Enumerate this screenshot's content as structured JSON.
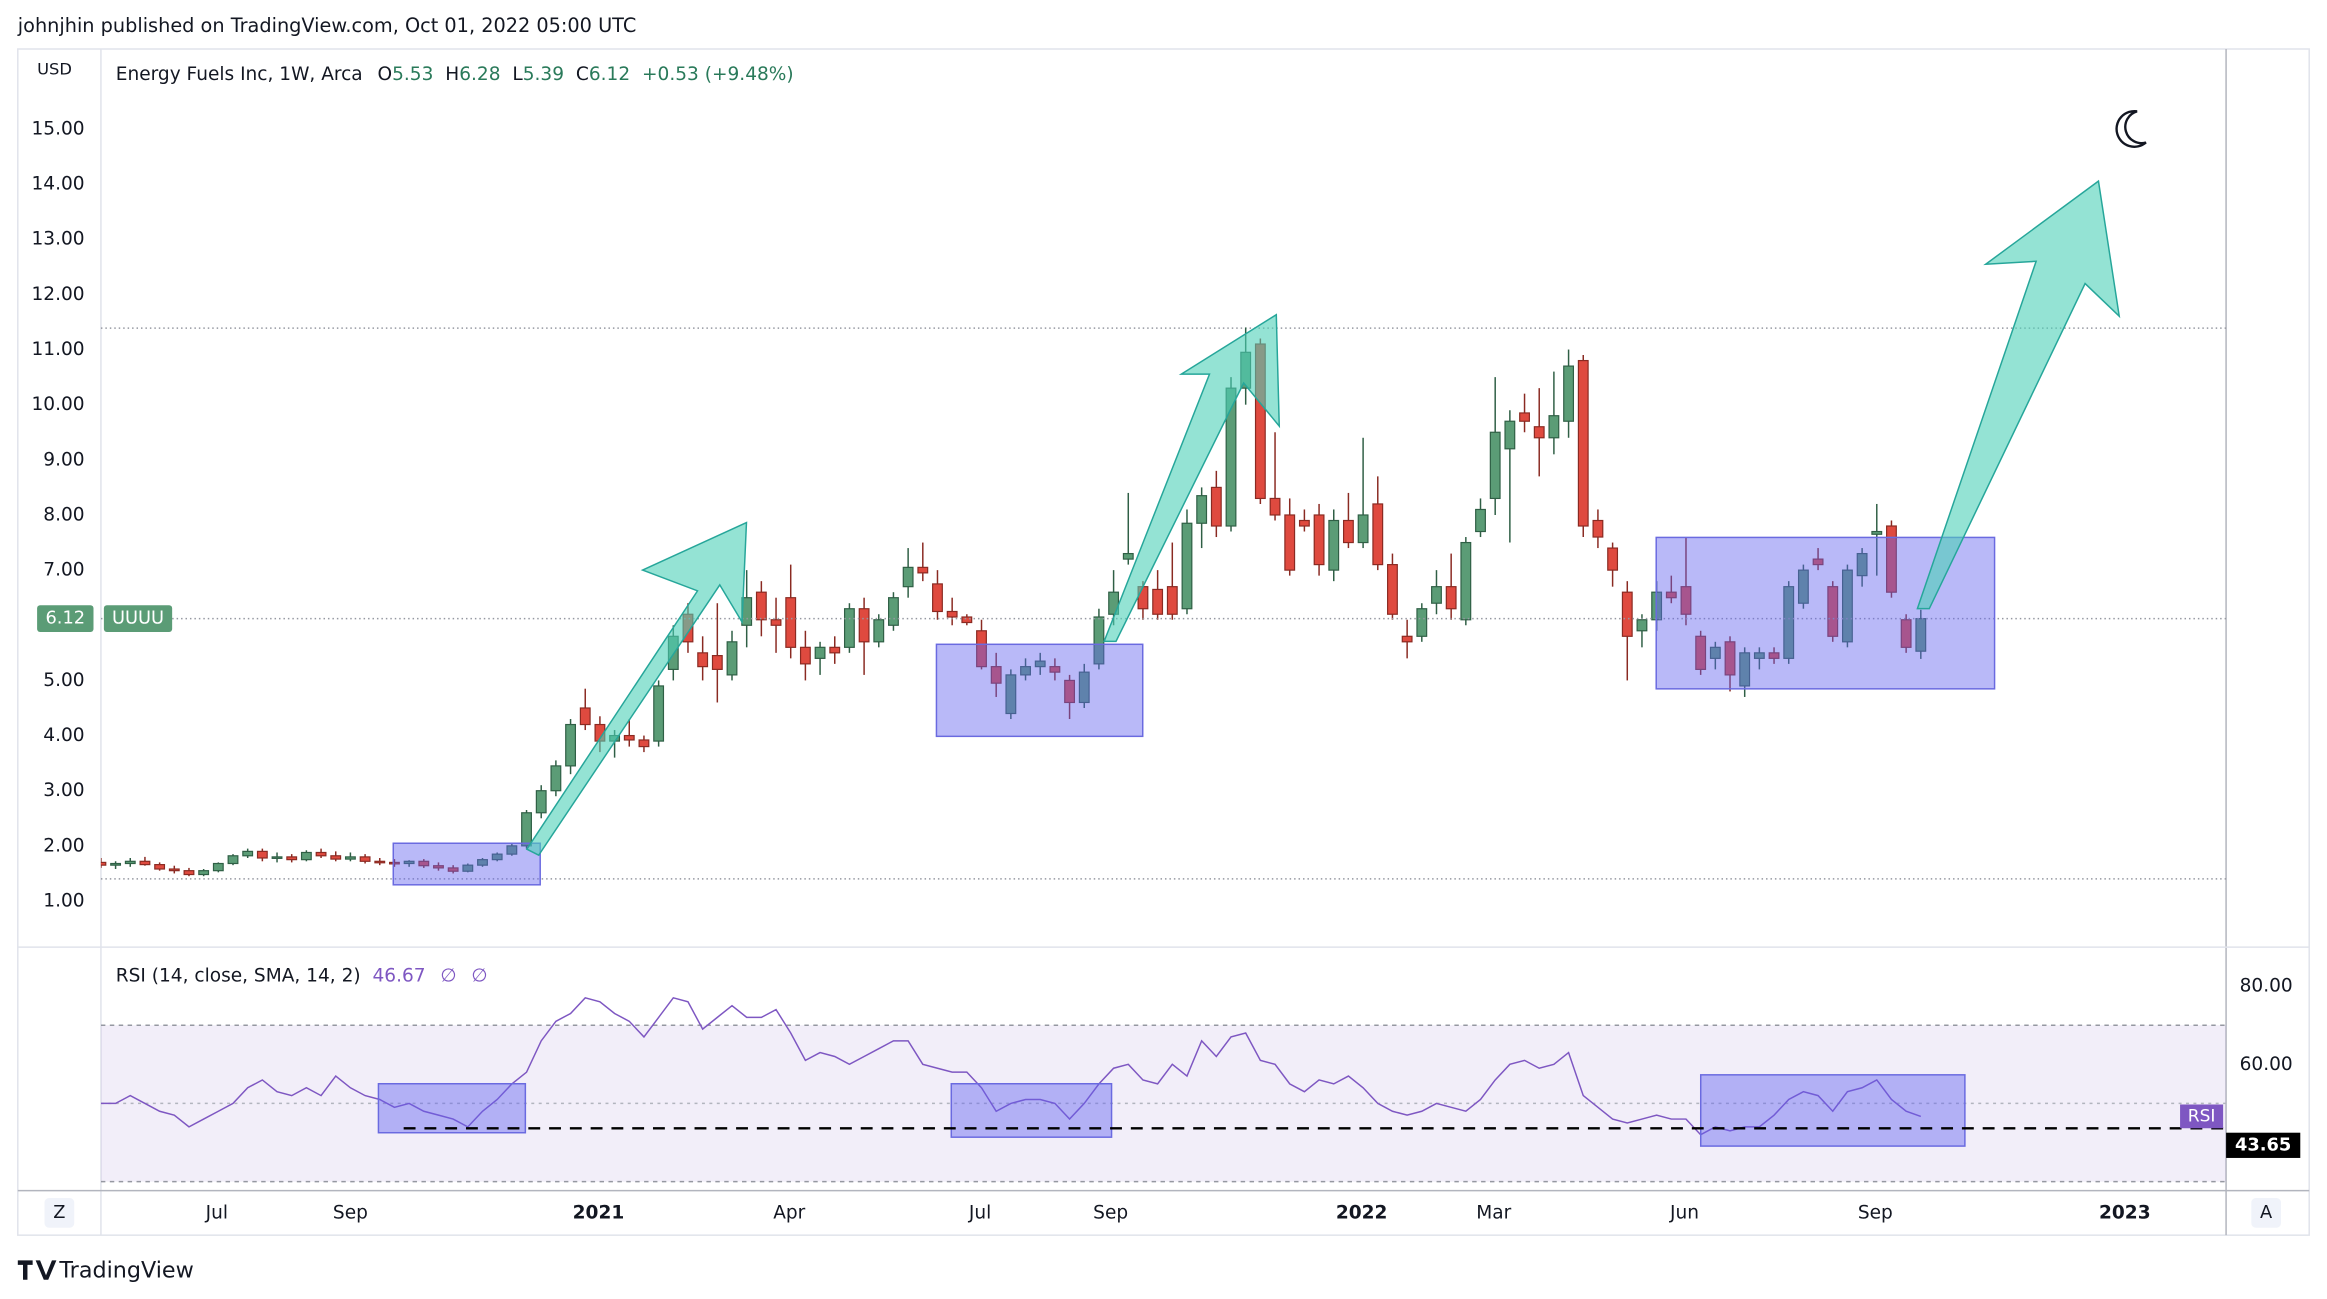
{
  "header": {
    "publisher": "johnjhin published on TradingView.com, Oct 01, 2022 05:00 UTC"
  },
  "chart_data": [
    {
      "type": "candlestick",
      "currency": "USD",
      "title": "Energy Fuels Inc, 1W, Arca",
      "legend": [
        {
          "label": "O",
          "value": "5.53"
        },
        {
          "label": "H",
          "value": "6.28"
        },
        {
          "label": "L",
          "value": "5.39"
        },
        {
          "label": "C",
          "value": "6.12"
        }
      ],
      "change": "+0.53 (+9.48%)",
      "symbol": "UUUU",
      "last_price": {
        "value": 6.12,
        "label": "6.12"
      },
      "up_color": "#5b9c76",
      "down_color": "#df4a3f",
      "ohlc": [
        [
          1.7,
          1.78,
          1.6,
          1.65
        ],
        [
          1.65,
          1.72,
          1.58,
          1.68
        ],
        [
          1.68,
          1.78,
          1.62,
          1.72
        ],
        [
          1.72,
          1.8,
          1.64,
          1.66
        ],
        [
          1.66,
          1.7,
          1.55,
          1.58
        ],
        [
          1.58,
          1.64,
          1.5,
          1.55
        ],
        [
          1.55,
          1.6,
          1.45,
          1.48
        ],
        [
          1.48,
          1.58,
          1.45,
          1.55
        ],
        [
          1.55,
          1.7,
          1.52,
          1.68
        ],
        [
          1.68,
          1.85,
          1.65,
          1.82
        ],
        [
          1.82,
          1.95,
          1.78,
          1.9
        ],
        [
          1.9,
          1.95,
          1.72,
          1.78
        ],
        [
          1.78,
          1.88,
          1.7,
          1.8
        ],
        [
          1.8,
          1.85,
          1.7,
          1.75
        ],
        [
          1.75,
          1.92,
          1.72,
          1.88
        ],
        [
          1.88,
          1.95,
          1.78,
          1.82
        ],
        [
          1.82,
          1.9,
          1.72,
          1.76
        ],
        [
          1.76,
          1.88,
          1.72,
          1.8
        ],
        [
          1.8,
          1.85,
          1.68,
          1.72
        ],
        [
          1.72,
          1.78,
          1.65,
          1.7
        ],
        [
          1.7,
          1.76,
          1.62,
          1.68
        ],
        [
          1.68,
          1.74,
          1.62,
          1.72
        ],
        [
          1.72,
          1.76,
          1.6,
          1.64
        ],
        [
          1.64,
          1.7,
          1.55,
          1.6
        ],
        [
          1.6,
          1.65,
          1.5,
          1.54
        ],
        [
          1.54,
          1.68,
          1.52,
          1.65
        ],
        [
          1.65,
          1.78,
          1.62,
          1.75
        ],
        [
          1.75,
          1.88,
          1.72,
          1.85
        ],
        [
          1.85,
          2.05,
          1.82,
          2.0
        ],
        [
          2.0,
          2.65,
          1.95,
          2.6
        ],
        [
          2.6,
          3.1,
          2.5,
          3.0
        ],
        [
          3.0,
          3.55,
          2.9,
          3.45
        ],
        [
          3.45,
          4.3,
          3.3,
          4.2
        ],
        [
          4.5,
          4.85,
          4.1,
          4.2
        ],
        [
          4.2,
          4.35,
          3.7,
          3.9
        ],
        [
          3.9,
          4.1,
          3.6,
          4.0
        ],
        [
          4.0,
          4.3,
          3.8,
          3.92
        ],
        [
          3.92,
          4.0,
          3.7,
          3.8
        ],
        [
          3.9,
          5.0,
          3.8,
          4.9
        ],
        [
          5.2,
          6.0,
          5.0,
          5.8
        ],
        [
          6.2,
          6.4,
          5.5,
          5.7
        ],
        [
          5.5,
          5.8,
          5.0,
          5.25
        ],
        [
          5.45,
          6.4,
          4.6,
          5.2
        ],
        [
          5.1,
          5.9,
          5.0,
          5.7
        ],
        [
          6.0,
          7.0,
          5.6,
          6.5
        ],
        [
          6.6,
          6.8,
          5.8,
          6.1
        ],
        [
          6.1,
          6.5,
          5.5,
          6.0
        ],
        [
          6.5,
          7.1,
          5.4,
          5.6
        ],
        [
          5.6,
          5.9,
          5.0,
          5.3
        ],
        [
          5.4,
          5.7,
          5.1,
          5.6
        ],
        [
          5.6,
          5.8,
          5.3,
          5.5
        ],
        [
          5.6,
          6.4,
          5.5,
          6.3
        ],
        [
          6.3,
          6.5,
          5.1,
          5.7
        ],
        [
          5.7,
          6.2,
          5.6,
          6.1
        ],
        [
          6.0,
          6.6,
          5.9,
          6.5
        ],
        [
          6.7,
          7.4,
          6.5,
          7.05
        ],
        [
          7.05,
          7.5,
          6.8,
          6.95
        ],
        [
          6.75,
          7.0,
          6.1,
          6.25
        ],
        [
          6.25,
          6.5,
          6.0,
          6.15
        ],
        [
          6.15,
          6.2,
          6.0,
          6.05
        ],
        [
          5.9,
          6.1,
          5.2,
          5.25
        ],
        [
          5.25,
          5.5,
          4.7,
          4.95
        ],
        [
          4.4,
          5.2,
          4.3,
          5.1
        ],
        [
          5.1,
          5.4,
          5.0,
          5.25
        ],
        [
          5.25,
          5.5,
          5.1,
          5.35
        ],
        [
          5.25,
          5.4,
          5.0,
          5.15
        ],
        [
          5.0,
          5.1,
          4.3,
          4.6
        ],
        [
          4.6,
          5.3,
          4.5,
          5.15
        ],
        [
          5.3,
          6.3,
          5.2,
          6.15
        ],
        [
          6.2,
          7.0,
          6.0,
          6.6
        ],
        [
          7.2,
          8.4,
          7.1,
          7.3
        ],
        [
          6.7,
          6.8,
          6.1,
          6.3
        ],
        [
          6.65,
          7.0,
          6.1,
          6.2
        ],
        [
          6.7,
          7.5,
          6.1,
          6.2
        ],
        [
          6.3,
          8.1,
          6.2,
          7.85
        ],
        [
          7.85,
          8.5,
          7.4,
          8.35
        ],
        [
          8.5,
          8.8,
          7.6,
          7.8
        ],
        [
          7.8,
          10.5,
          7.7,
          10.3
        ],
        [
          10.3,
          11.4,
          10.0,
          10.95
        ],
        [
          11.1,
          11.2,
          8.2,
          8.3
        ],
        [
          8.3,
          9.5,
          7.9,
          8.0
        ],
        [
          8.0,
          8.3,
          6.9,
          7.0
        ],
        [
          7.9,
          8.1,
          7.7,
          7.8
        ],
        [
          8.0,
          8.2,
          6.9,
          7.1
        ],
        [
          7.0,
          8.1,
          6.8,
          7.9
        ],
        [
          7.9,
          8.4,
          7.4,
          7.5
        ],
        [
          7.5,
          9.4,
          7.4,
          8.0
        ],
        [
          8.2,
          8.7,
          7.0,
          7.1
        ],
        [
          7.1,
          7.3,
          6.1,
          6.2
        ],
        [
          5.8,
          6.1,
          5.4,
          5.7
        ],
        [
          5.8,
          6.4,
          5.7,
          6.3
        ],
        [
          6.4,
          7.0,
          6.2,
          6.7
        ],
        [
          6.7,
          7.3,
          6.1,
          6.3
        ],
        [
          6.1,
          7.6,
          6.0,
          7.5
        ],
        [
          7.7,
          8.3,
          7.6,
          8.1
        ],
        [
          8.3,
          10.5,
          8.0,
          9.5
        ],
        [
          9.2,
          9.9,
          7.5,
          9.7
        ],
        [
          9.85,
          10.2,
          9.5,
          9.7
        ],
        [
          9.6,
          10.3,
          8.7,
          9.4
        ],
        [
          9.4,
          10.6,
          9.1,
          9.8
        ],
        [
          9.7,
          11.0,
          9.4,
          10.7
        ],
        [
          10.8,
          10.9,
          7.6,
          7.8
        ],
        [
          7.9,
          8.1,
          7.4,
          7.6
        ],
        [
          7.4,
          7.5,
          6.7,
          7.0
        ],
        [
          6.6,
          6.8,
          5.0,
          5.8
        ],
        [
          5.9,
          6.2,
          5.6,
          6.1
        ],
        [
          6.1,
          6.8,
          5.9,
          6.6
        ],
        [
          6.6,
          6.9,
          6.4,
          6.5
        ],
        [
          6.7,
          7.6,
          6.0,
          6.2
        ],
        [
          5.8,
          5.9,
          5.1,
          5.2
        ],
        [
          5.4,
          5.7,
          5.2,
          5.6
        ],
        [
          5.7,
          5.8,
          4.8,
          5.1
        ],
        [
          4.9,
          5.6,
          4.7,
          5.5
        ],
        [
          5.4,
          5.6,
          5.2,
          5.5
        ],
        [
          5.5,
          5.6,
          5.3,
          5.4
        ],
        [
          5.4,
          6.8,
          5.3,
          6.7
        ],
        [
          6.4,
          7.1,
          6.3,
          7.0
        ],
        [
          7.2,
          7.4,
          7.0,
          7.1
        ],
        [
          6.7,
          6.8,
          5.7,
          5.8
        ],
        [
          5.7,
          7.1,
          5.6,
          7.0
        ],
        [
          6.9,
          7.4,
          6.7,
          7.3
        ],
        [
          7.65,
          8.2,
          6.9,
          7.7
        ],
        [
          7.8,
          7.9,
          6.5,
          6.6
        ],
        [
          6.1,
          6.2,
          5.5,
          5.6
        ],
        [
          5.53,
          6.28,
          5.39,
          6.12
        ]
      ],
      "xlim": [
        0,
        144.8
      ],
      "xticks": [
        {
          "value": 7.9,
          "label": "Jul"
        },
        {
          "value": 17.0,
          "label": "Sep"
        },
        {
          "value": 33.9,
          "label": "2021"
        },
        {
          "value": 46.9,
          "label": "Apr"
        },
        {
          "value": 59.9,
          "label": "Jul"
        },
        {
          "value": 68.8,
          "label": "Sep"
        },
        {
          "value": 85.9,
          "label": "2022"
        },
        {
          "value": 94.9,
          "label": "Mar"
        },
        {
          "value": 107.9,
          "label": "Jun"
        },
        {
          "value": 120.9,
          "label": "Sep"
        },
        {
          "value": 137.9,
          "label": "2023"
        }
      ],
      "ylim": [
        0.19,
        16.45
      ],
      "yticks": [
        {
          "value": 1,
          "label": "1.00"
        },
        {
          "value": 2,
          "label": "2.00"
        },
        {
          "value": 3,
          "label": "3.00"
        },
        {
          "value": 4,
          "label": "4.00"
        },
        {
          "value": 5,
          "label": "5.00"
        },
        {
          "value": 6,
          "label": "6.00"
        },
        {
          "value": 7,
          "label": "7.00"
        },
        {
          "value": 8,
          "label": "8.00"
        },
        {
          "value": 9,
          "label": "9.00"
        },
        {
          "value": 10,
          "label": "10.00"
        },
        {
          "value": 11,
          "label": "11.00"
        },
        {
          "value": 12,
          "label": "12.00"
        },
        {
          "value": 13,
          "label": "13.00"
        },
        {
          "value": 14,
          "label": "14.00"
        },
        {
          "value": 15,
          "label": "15.00"
        }
      ]
    },
    {
      "type": "line",
      "title": "RSI (14, close, SMA, 14, 2)",
      "legend_values": [
        "46.67",
        "∅",
        "∅"
      ],
      "badge": "RSI",
      "color": "#7e57c2",
      "bands": {
        "upper": 70,
        "middle": 50,
        "lower": 30
      },
      "hline": {
        "value": 43.65,
        "label": "43.65"
      },
      "values": [
        50,
        50,
        52,
        50,
        48,
        47,
        44,
        46,
        48,
        50,
        54,
        56,
        53,
        52,
        54,
        52,
        57,
        54,
        52,
        51,
        49,
        50,
        48,
        47,
        46,
        44,
        48,
        51,
        55,
        58,
        66,
        71,
        73,
        77,
        76,
        73,
        71,
        67,
        72,
        77,
        76,
        69,
        72,
        75,
        72,
        72,
        74,
        68,
        61,
        63,
        62,
        60,
        62,
        64,
        66,
        66,
        60,
        59,
        58,
        58,
        54,
        48,
        50,
        51,
        51,
        50,
        46,
        50,
        55,
        59,
        60,
        56,
        55,
        60,
        57,
        66,
        62,
        67,
        68,
        61,
        60,
        55,
        53,
        56,
        55,
        57,
        54,
        50,
        48,
        47,
        48,
        50,
        49,
        48,
        51,
        56,
        60,
        61,
        59,
        60,
        63,
        52,
        49,
        46,
        45,
        46,
        47,
        46,
        46,
        42,
        44,
        43,
        44,
        44,
        47,
        51,
        53,
        52,
        48,
        53,
        54,
        56,
        51,
        48,
        46.67
      ],
      "xlim": [
        0,
        144.8
      ],
      "ylim": [
        27.7,
        89.2
      ],
      "yticks": [
        {
          "value": 60,
          "label": "60.00"
        },
        {
          "value": 80,
          "label": "80.00"
        }
      ]
    }
  ],
  "footer": {
    "brand": "TradingView",
    "left_button": "Z",
    "right_button": "A"
  }
}
